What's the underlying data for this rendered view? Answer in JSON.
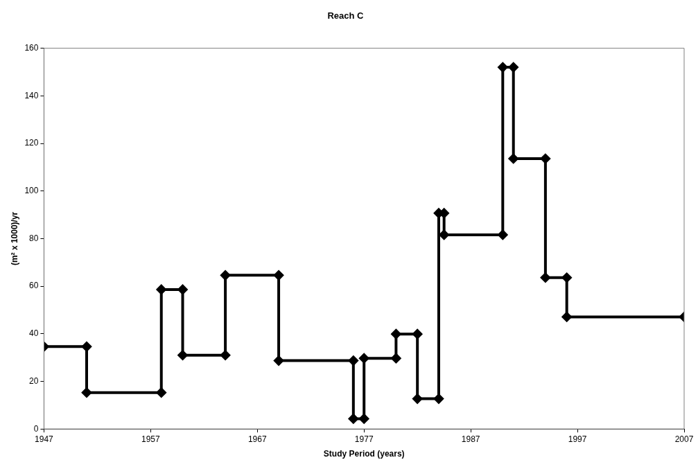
{
  "chart_data": {
    "type": "line",
    "title": "Reach C",
    "xlabel": "Study Period (years)",
    "ylabel": "(m² x 1000)/yr",
    "x": [
      1947,
      1951,
      1951,
      1958,
      1958,
      1960,
      1960,
      1964,
      1964,
      1969,
      1969,
      1976,
      1976,
      1977,
      1977,
      1980,
      1980,
      1982,
      1982,
      1984,
      1984,
      1984.5,
      1984.5,
      1990,
      1990,
      1991,
      1991,
      1994,
      1994,
      1996,
      1996,
      2007
    ],
    "values": [
      34.6,
      34.6,
      15.3,
      15.3,
      58.6,
      58.6,
      31.0,
      31.0,
      64.6,
      64.6,
      28.7,
      28.7,
      4.3,
      4.3,
      29.7,
      29.7,
      39.9,
      39.9,
      12.7,
      12.7,
      90.7,
      90.7,
      81.6,
      81.6,
      152,
      152,
      113.6,
      113.6,
      63.6,
      63.6,
      47.1,
      47.1
    ],
    "color": "#000000",
    "marker": "diamond",
    "line_style": "solid",
    "grid": false,
    "legend": false,
    "xlim": [
      1947,
      2007
    ],
    "xticks": [
      1947,
      1957,
      1967,
      1977,
      1987,
      1997,
      2007
    ],
    "ylim": [
      0,
      160
    ],
    "yticks": [
      0,
      20,
      40,
      60,
      80,
      100,
      120,
      140,
      160
    ]
  }
}
